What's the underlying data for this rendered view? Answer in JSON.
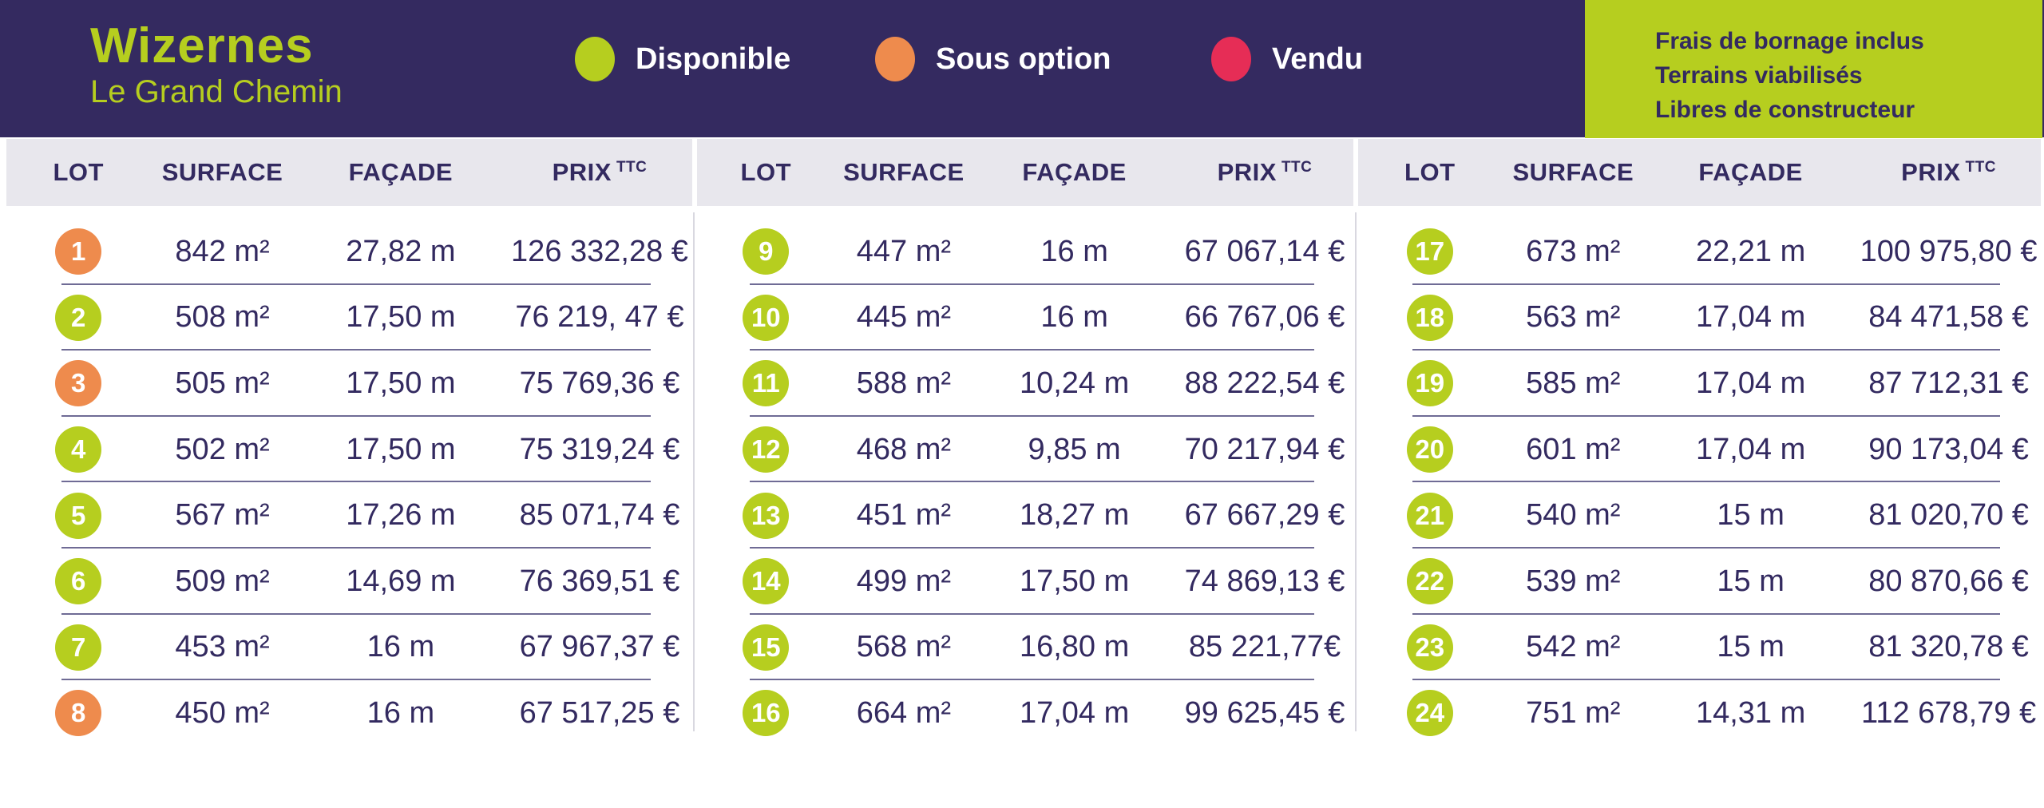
{
  "title": {
    "name": "Wizernes",
    "subtitle": "Le Grand Chemin"
  },
  "legend": [
    {
      "label": "Disponible",
      "status": "disponible",
      "color": "#b6ce1f"
    },
    {
      "label": "Sous option",
      "status": "sous_option",
      "color": "#ee8b4d"
    },
    {
      "label": "Vendu",
      "status": "vendu",
      "color": "#e62d56"
    }
  ],
  "info_box": {
    "lines": [
      "Frais de bornage inclus",
      "Terrains viabilisés",
      "Libres de constructeur"
    ]
  },
  "columns": [
    "LOT",
    "SURFACE",
    "FAÇADE",
    "PRIX"
  ],
  "prix_sup": "TTC",
  "colors": {
    "banner_bg": "#342a60",
    "accent_green": "#b6ce1f",
    "accent_orange": "#ee8b4d",
    "accent_pink": "#e62d56",
    "header_band_bg": "#e8e7ed",
    "text_navy": "#332a60",
    "row_line": "#6f6b95"
  },
  "tables": [
    {
      "rows": [
        {
          "lot": "1",
          "status": "sous_option",
          "surface": "842 m²",
          "facade": "27,82 m",
          "prix": "126 332,28 €"
        },
        {
          "lot": "2",
          "status": "disponible",
          "surface": "508 m²",
          "facade": "17,50 m",
          "prix": "76 219, 47 €"
        },
        {
          "lot": "3",
          "status": "sous_option",
          "surface": "505 m²",
          "facade": "17,50 m",
          "prix": "75 769,36 €"
        },
        {
          "lot": "4",
          "status": "disponible",
          "surface": "502 m²",
          "facade": "17,50 m",
          "prix": "75 319,24 €"
        },
        {
          "lot": "5",
          "status": "disponible",
          "surface": "567 m²",
          "facade": "17,26 m",
          "prix": "85 071,74 €"
        },
        {
          "lot": "6",
          "status": "disponible",
          "surface": "509 m²",
          "facade": "14,69 m",
          "prix": "76 369,51 €"
        },
        {
          "lot": "7",
          "status": "disponible",
          "surface": "453 m²",
          "facade": "16 m",
          "prix": "67 967,37 €"
        },
        {
          "lot": "8",
          "status": "sous_option",
          "surface": "450 m²",
          "facade": "16 m",
          "prix": "67 517,25 €"
        }
      ]
    },
    {
      "rows": [
        {
          "lot": "9",
          "status": "disponible",
          "surface": "447 m²",
          "facade": "16 m",
          "prix": "67 067,14 €"
        },
        {
          "lot": "10",
          "status": "disponible",
          "surface": "445 m²",
          "facade": "16 m",
          "prix": "66 767,06 €"
        },
        {
          "lot": "11",
          "status": "disponible",
          "surface": "588 m²",
          "facade": "10,24 m",
          "prix": "88 222,54 €"
        },
        {
          "lot": "12",
          "status": "disponible",
          "surface": "468 m²",
          "facade": "9,85 m",
          "prix": "70 217,94 €"
        },
        {
          "lot": "13",
          "status": "disponible",
          "surface": "451 m²",
          "facade": "18,27 m",
          "prix": "67 667,29 €"
        },
        {
          "lot": "14",
          "status": "disponible",
          "surface": "499 m²",
          "facade": "17,50 m",
          "prix": "74 869,13 €"
        },
        {
          "lot": "15",
          "status": "disponible",
          "surface": "568 m²",
          "facade": "16,80 m",
          "prix": "85 221,77€"
        },
        {
          "lot": "16",
          "status": "disponible",
          "surface": "664 m²",
          "facade": "17,04 m",
          "prix": "99 625,45 €"
        }
      ]
    },
    {
      "rows": [
        {
          "lot": "17",
          "status": "disponible",
          "surface": "673 m²",
          "facade": "22,21 m",
          "prix": "100 975,80 €"
        },
        {
          "lot": "18",
          "status": "disponible",
          "surface": "563 m²",
          "facade": "17,04 m",
          "prix": "84 471,58 €"
        },
        {
          "lot": "19",
          "status": "disponible",
          "surface": "585 m²",
          "facade": "17,04 m",
          "prix": "87 712,31 €"
        },
        {
          "lot": "20",
          "status": "disponible",
          "surface": "601 m²",
          "facade": "17,04 m",
          "prix": "90 173,04 €"
        },
        {
          "lot": "21",
          "status": "disponible",
          "surface": "540 m²",
          "facade": "15 m",
          "prix": "81 020,70 €"
        },
        {
          "lot": "22",
          "status": "disponible",
          "surface": "539 m²",
          "facade": "15 m",
          "prix": "80 870,66 €"
        },
        {
          "lot": "23",
          "status": "disponible",
          "surface": "542 m²",
          "facade": "15 m",
          "prix": "81 320,78 €"
        },
        {
          "lot": "24",
          "status": "disponible",
          "surface": "751 m²",
          "facade": "14,31 m",
          "prix": "112 678,79 €"
        }
      ]
    }
  ]
}
